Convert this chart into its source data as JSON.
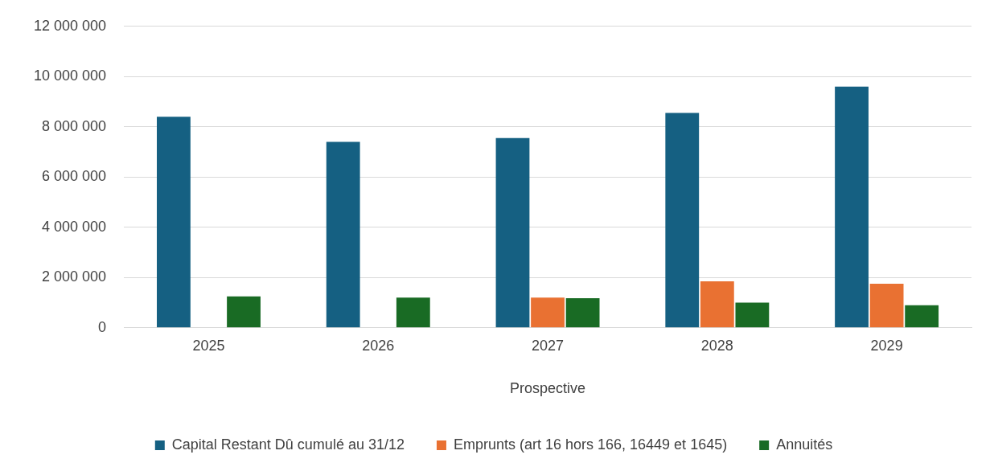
{
  "chart_data": {
    "type": "bar",
    "xlabel": "Prospective",
    "categories": [
      "2025",
      "2026",
      "2027",
      "2028",
      "2029"
    ],
    "series": [
      {
        "name": "Capital Restant Dû cumulé au 31/12",
        "color": "#156082",
        "values": [
          8400000,
          7400000,
          7550000,
          8550000,
          9600000
        ]
      },
      {
        "name": "Emprunts (art 16 hors 166, 16449 et 1645)",
        "color": "#e97132",
        "values": [
          null,
          null,
          1200000,
          1850000,
          1750000
        ]
      },
      {
        "name": "Annuités",
        "color": "#196b24",
        "values": [
          1250000,
          1200000,
          1180000,
          1000000,
          900000
        ]
      }
    ],
    "ylim": [
      0,
      12000000
    ],
    "yticks": [
      {
        "value": 0,
        "label": "0"
      },
      {
        "value": 2000000,
        "label": "2 000 000"
      },
      {
        "value": 4000000,
        "label": "4 000 000"
      },
      {
        "value": 6000000,
        "label": "6 000 000"
      },
      {
        "value": 8000000,
        "label": "8 000 000"
      },
      {
        "value": 10000000,
        "label": "10 000 000"
      },
      {
        "value": 12000000,
        "label": "12 000 000"
      }
    ],
    "grid": "y",
    "legend": "bottom"
  }
}
